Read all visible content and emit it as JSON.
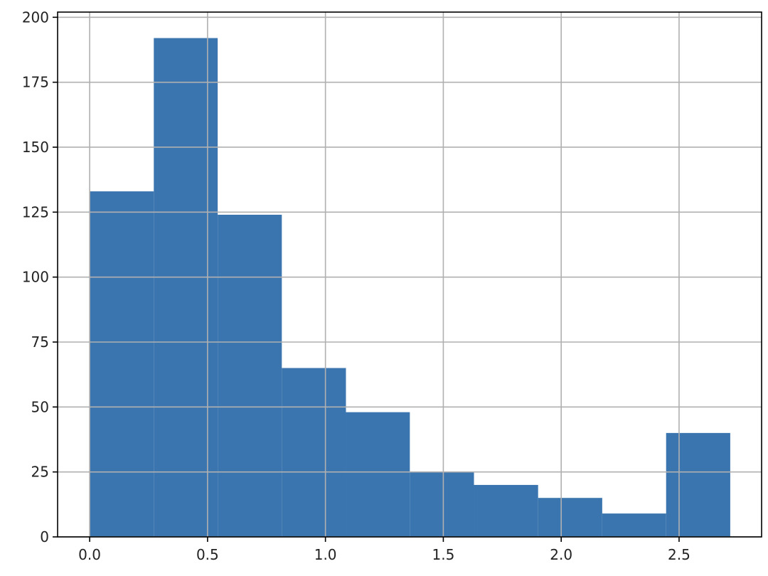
{
  "chart_data": {
    "type": "bar",
    "subtype": "histogram",
    "title": "",
    "xlabel": "",
    "ylabel": "",
    "xlim": [
      -0.136,
      2.85
    ],
    "ylim": [
      0,
      202
    ],
    "grid": true,
    "bar_color": "#3a75af",
    "bins": [
      {
        "x0": 0.0,
        "x1": 0.272,
        "count": 133
      },
      {
        "x0": 0.272,
        "x1": 0.543,
        "count": 192
      },
      {
        "x0": 0.543,
        "x1": 0.815,
        "count": 124
      },
      {
        "x0": 0.815,
        "x1": 1.087,
        "count": 65
      },
      {
        "x0": 1.087,
        "x1": 1.358,
        "count": 48
      },
      {
        "x0": 1.358,
        "x1": 1.63,
        "count": 25
      },
      {
        "x0": 1.63,
        "x1": 1.902,
        "count": 20
      },
      {
        "x0": 1.902,
        "x1": 2.174,
        "count": 15
      },
      {
        "x0": 2.174,
        "x1": 2.445,
        "count": 9
      },
      {
        "x0": 2.445,
        "x1": 2.717,
        "count": 40
      }
    ],
    "x_ticks": [
      {
        "value": 0.0,
        "label": "0.0"
      },
      {
        "value": 0.5,
        "label": "0.5"
      },
      {
        "value": 1.0,
        "label": "1.0"
      },
      {
        "value": 1.5,
        "label": "1.5"
      },
      {
        "value": 2.0,
        "label": "2.0"
      },
      {
        "value": 2.5,
        "label": "2.5"
      }
    ],
    "y_ticks": [
      {
        "value": 0,
        "label": "0"
      },
      {
        "value": 25,
        "label": "25"
      },
      {
        "value": 50,
        "label": "50"
      },
      {
        "value": 75,
        "label": "75"
      },
      {
        "value": 100,
        "label": "100"
      },
      {
        "value": 125,
        "label": "125"
      },
      {
        "value": 150,
        "label": "150"
      },
      {
        "value": 175,
        "label": "175"
      },
      {
        "value": 200,
        "label": "200"
      }
    ]
  }
}
